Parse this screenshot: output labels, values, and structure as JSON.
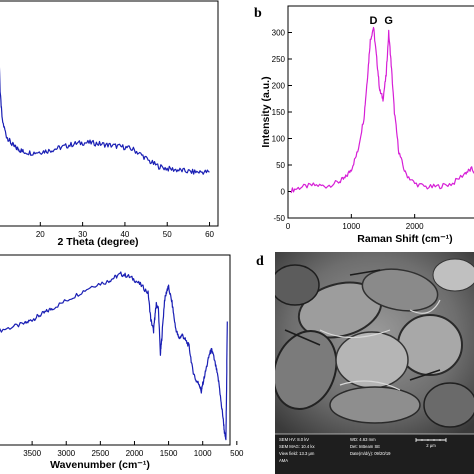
{
  "panels": {
    "a": {
      "letter": "",
      "xlabel": "2 Theta (degree)"
    },
    "b": {
      "letter": "b",
      "ylabel": "Intensity (a.u.)",
      "xlabel": "Raman Shift (cm⁻¹)",
      "peak_labels": [
        "D",
        "G"
      ]
    },
    "c": {
      "letter": "",
      "xlabel": "Wavenumber (cm⁻¹)"
    },
    "d": {
      "letter": "d",
      "sem_info": {
        "line1_left": "SEM HV: 8.0 kV",
        "line1_right": "WD: 4.63 mm",
        "line2_left": "SEM MAG: 10.4 kx",
        "line2_right": "Det: InBeam SE",
        "line3_left": "View field: 13.3 μm",
        "line3_right": "Date(m/d/y): 09/20/19",
        "line4_left": "AMA",
        "scale": "2 μm"
      }
    }
  },
  "chart_data": [
    {
      "type": "line",
      "panel": "a",
      "xlabel": "2 Theta (degree)",
      "ylabel": "",
      "xlim": [
        10,
        62
      ],
      "ylim": [
        0,
        100
      ],
      "xticks": [
        20,
        30,
        40,
        50,
        60
      ],
      "series": [
        {
          "color": "#1a1fb4",
          "x": [
            10,
            10.5,
            11,
            12,
            13,
            14,
            15,
            16,
            18,
            20,
            22,
            24,
            26,
            28,
            30,
            32,
            34,
            36,
            38,
            40,
            42,
            44,
            46,
            48,
            50,
            52,
            54,
            56,
            58,
            60
          ],
          "y": [
            92,
            60,
            47,
            40,
            37,
            35,
            34,
            33,
            32.5,
            33,
            33.5,
            34.5,
            35.5,
            36.5,
            37,
            37,
            36.5,
            36,
            35.5,
            35,
            34,
            31.5,
            28.5,
            26.5,
            25.5,
            25,
            24.5,
            24,
            24,
            24
          ]
        }
      ]
    },
    {
      "type": "line",
      "panel": "b",
      "xlabel": "Raman Shift (cm⁻¹)",
      "ylabel": "Intensity (a.u.)",
      "xlim": [
        0,
        3000
      ],
      "ylim": [
        -50,
        350
      ],
      "xticks": [
        0,
        1000,
        2000
      ],
      "yticks": [
        -50,
        0,
        50,
        100,
        150,
        200,
        250,
        300
      ],
      "annotations": [
        {
          "text": "D",
          "x": 1350
        },
        {
          "text": "G",
          "x": 1590
        }
      ],
      "series": [
        {
          "color": "#d61fd6",
          "x": [
            50,
            200,
            400,
            600,
            800,
            900,
            1000,
            1100,
            1200,
            1250,
            1300,
            1350,
            1400,
            1450,
            1500,
            1550,
            1590,
            1630,
            1680,
            1750,
            1850,
            2000,
            2200,
            2400,
            2600,
            2800,
            2900,
            3000
          ],
          "y": [
            2,
            8,
            12,
            10,
            18,
            25,
            42,
            75,
            140,
            210,
            285,
            310,
            250,
            190,
            175,
            220,
            300,
            240,
            150,
            75,
            35,
            15,
            8,
            10,
            15,
            35,
            42,
            30
          ]
        }
      ]
    },
    {
      "type": "line",
      "panel": "c",
      "xlabel": "Wavenumber (cm⁻¹)",
      "ylabel": "",
      "xlim": [
        4000,
        600
      ],
      "ylim": [
        0,
        100
      ],
      "xticks": [
        3500,
        3000,
        2500,
        2000,
        1500,
        1000,
        500
      ],
      "series": [
        {
          "color": "#1a1fb4",
          "x": [
            4000,
            3800,
            3600,
            3500,
            3400,
            3300,
            3200,
            3000,
            2800,
            2600,
            2400,
            2300,
            2200,
            2100,
            2000,
            1900,
            1800,
            1760,
            1720,
            1700,
            1680,
            1650,
            1620,
            1600,
            1560,
            1520,
            1500,
            1450,
            1400,
            1350,
            1300,
            1250,
            1200,
            1150,
            1100,
            1050,
            1020,
            1000,
            950,
            900,
            870,
            850,
            800,
            760,
            730,
            700,
            680,
            660,
            650,
            640
          ],
          "y": [
            60,
            62,
            64,
            66,
            68,
            70,
            72,
            76,
            80,
            84,
            86,
            88,
            90,
            89,
            87,
            84,
            80,
            66,
            60,
            68,
            74,
            72,
            48,
            56,
            76,
            82,
            83,
            75,
            62,
            56,
            58,
            55,
            52,
            40,
            34,
            32,
            28,
            32,
            40,
            48,
            50,
            48,
            40,
            32,
            22,
            14,
            6,
            3,
            30,
            65
          ]
        }
      ]
    }
  ]
}
